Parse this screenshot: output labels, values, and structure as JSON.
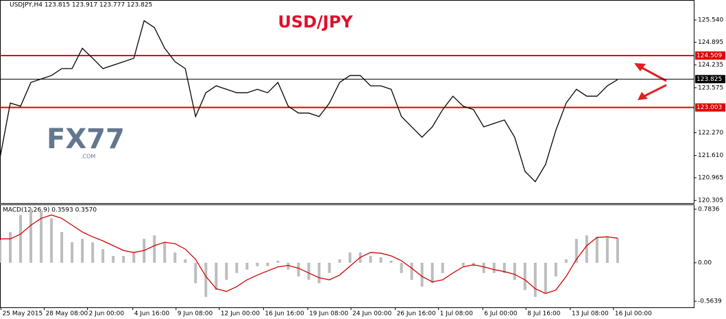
{
  "chart_data": [
    {
      "type": "line",
      "title": "USD/JPY",
      "subtitle": "USDJPY,H4  123.815 123.917 123.777 123.825",
      "watermark": "FX77",
      "watermark_sub": ".COM",
      "color": "#000000",
      "values": [
        121.54,
        123.13,
        123.04,
        123.73,
        123.83,
        123.93,
        124.13,
        124.13,
        124.72,
        124.43,
        124.13,
        124.23,
        124.33,
        124.43,
        125.52,
        125.32,
        124.72,
        124.33,
        124.13,
        122.74,
        123.43,
        123.63,
        123.53,
        123.43,
        123.43,
        123.53,
        123.43,
        123.73,
        123.04,
        122.84,
        122.84,
        122.74,
        123.13,
        123.73,
        123.93,
        123.93,
        123.63,
        123.63,
        123.53,
        122.74,
        122.44,
        122.14,
        122.44,
        122.94,
        123.33,
        123.04,
        122.94,
        122.44,
        122.54,
        122.64,
        122.14,
        121.15,
        120.85,
        121.35,
        122.34,
        123.13,
        123.53,
        123.33,
        123.33,
        123.63,
        123.81
      ],
      "xlim": [
        0,
        67.4
      ],
      "ylim": [
        120.23,
        126.12
      ],
      "yticks": [
        {
          "value": 125.54,
          "label": "125.540"
        },
        124.895,
        124.235,
        123.575,
        {
          "value": 122.27,
          "label": "122.270"
        },
        {
          "value": 121.61,
          "label": "121.610"
        },
        120.965,
        {
          "value": 120.305,
          "label": "120.305"
        }
      ],
      "xticks": [
        {
          "value": 0.1,
          "label": "25 May 2015"
        },
        {
          "value": 4.3,
          "label": "28 May 08:00"
        },
        {
          "value": 8.5,
          "label": "2 Jun 00:00"
        },
        {
          "value": 12.9,
          "label": "4 Jun 16:00"
        },
        {
          "value": 17.1,
          "label": "9 Jun 08:00"
        },
        {
          "value": 21.3,
          "label": "12 Jun 00:00"
        },
        {
          "value": 25.6,
          "label": "16 Jun 16:00"
        },
        {
          "value": 29.9,
          "label": "19 Jun 08:00"
        },
        {
          "value": 34.1,
          "label": "24 Jun 00:00"
        },
        {
          "value": 38.4,
          "label": "26 Jun 16:00"
        },
        {
          "value": 42.6,
          "label": "1 Jul 08:00"
        },
        {
          "value": 46.9,
          "label": "6 Jul 00:00"
        },
        {
          "value": 51.1,
          "label": "8 Jul 16:00"
        },
        {
          "value": 55.4,
          "label": "13 Jul 08:00"
        },
        {
          "value": 59.6,
          "label": "16 Jul 00:00"
        }
      ],
      "hlines": [
        {
          "value": 124.509,
          "color": "#e00000"
        },
        {
          "value": 123.825,
          "color": "#000000"
        },
        {
          "value": 123.003,
          "color": "#e00000"
        }
      ]
    },
    {
      "type": "bar",
      "title": "MACD(12,26,9) 0.3593 0.3570",
      "xlim": [
        0,
        67.4
      ],
      "ylim": [
        -0.653,
        0.854
      ],
      "yticks": [
        0.7836,
        {
          "value": 0,
          "label": "0.00"
        },
        -0.5639
      ],
      "series": [
        {
          "color": "#bdbdbd",
          "values": [
            0.33,
            0.45,
            0.7,
            0.8,
            0.75,
            0.65,
            0.45,
            0.3,
            0.35,
            0.3,
            0.2,
            0.1,
            0.1,
            0.15,
            0.35,
            0.4,
            0.3,
            0.15,
            0.05,
            -0.3,
            -0.5,
            -0.4,
            -0.25,
            -0.15,
            -0.1,
            -0.05,
            -0.05,
            0.03,
            -0.1,
            -0.2,
            -0.25,
            -0.3,
            -0.15,
            0.05,
            0.15,
            0.15,
            0.1,
            0.08,
            0.03,
            -0.15,
            -0.25,
            -0.35,
            -0.3,
            -0.15,
            0.0,
            -0.05,
            -0.05,
            -0.15,
            -0.15,
            -0.15,
            -0.25,
            -0.4,
            -0.5,
            -0.45,
            -0.2,
            0.05,
            0.35,
            0.4,
            0.38,
            0.37,
            0.36
          ]
        },
        {
          "color": "#d00000",
          "values": [
            0.35,
            0.35,
            0.42,
            0.55,
            0.65,
            0.7,
            0.65,
            0.55,
            0.45,
            0.38,
            0.32,
            0.25,
            0.18,
            0.15,
            0.18,
            0.25,
            0.3,
            0.28,
            0.2,
            0.05,
            -0.2,
            -0.38,
            -0.42,
            -0.35,
            -0.25,
            -0.18,
            -0.12,
            -0.06,
            -0.04,
            -0.08,
            -0.15,
            -0.22,
            -0.25,
            -0.18,
            -0.05,
            0.08,
            0.15,
            0.14,
            0.1,
            0.03,
            -0.08,
            -0.2,
            -0.28,
            -0.25,
            -0.15,
            -0.06,
            -0.03,
            -0.06,
            -0.1,
            -0.13,
            -0.17,
            -0.25,
            -0.38,
            -0.45,
            -0.4,
            -0.2,
            0.05,
            0.25,
            0.37,
            0.38,
            0.36
          ]
        }
      ]
    }
  ]
}
